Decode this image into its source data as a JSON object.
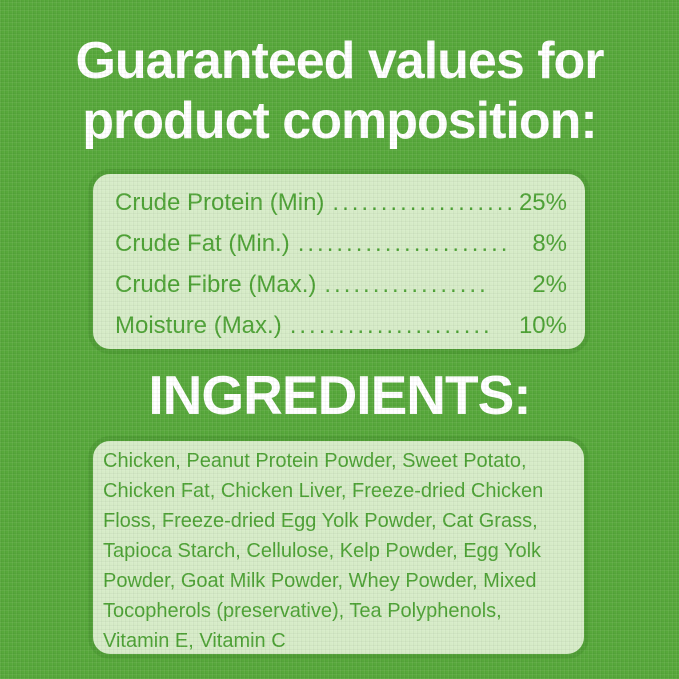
{
  "page": {
    "background_color": "#57a83b",
    "panel_fill_color": "#d6ebc7",
    "panel_border_color": "#4e9d34",
    "text_green_color": "#4ca134",
    "heading_color": "#ffffff"
  },
  "title": {
    "line1": "Guaranteed values for",
    "line2": "product composition:"
  },
  "guaranteed_values": {
    "rows": [
      {
        "label": "Crude Protein (Min)",
        "leader": "...................",
        "value": "25%"
      },
      {
        "label": "Crude Fat (Min.)",
        "leader": "......................",
        "value": "8%"
      },
      {
        "label": "Crude Fibre (Max.)",
        "leader": ".................",
        "value": "2%"
      },
      {
        "label": "Moisture (Max.)",
        "leader": ".....................",
        "value": "10%"
      }
    ]
  },
  "ingredients": {
    "heading": "INGREDIENTS:",
    "lines": [
      "Chicken, Peanut Protein Powder, Sweet Potato,",
      "Chicken Fat, Chicken Liver, Freeze-dried Chicken",
      "Floss, Freeze-dried Egg Yolk Powder, Cat Grass,",
      "Tapioca Starch, Cellulose, Kelp Powder, Egg Yolk",
      "Powder, Goat Milk Powder, Whey Powder, Mixed",
      "Tocopherols (preservative), Tea Polyphenols,",
      "Vitamin E, Vitamin C"
    ]
  }
}
